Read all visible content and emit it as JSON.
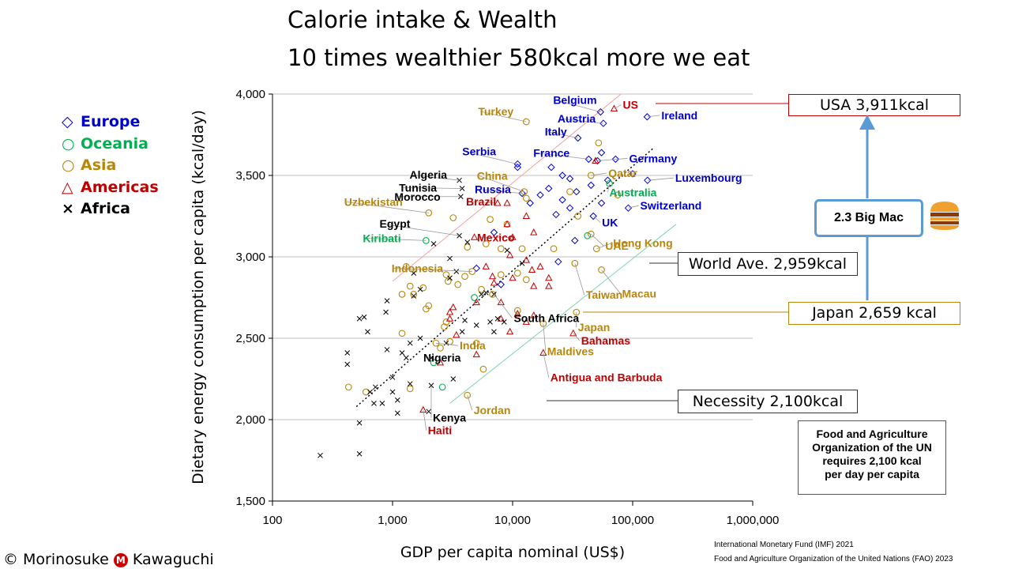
{
  "title_line1": "Calorie intake & Wealth",
  "title_line2": "10 times wealthier 580kcal more we eat",
  "legend": [
    {
      "symbol": "diamond",
      "label": "Europe",
      "color": "#0000cc"
    },
    {
      "symbol": "circle",
      "label": "Oceania",
      "color": "#00b050"
    },
    {
      "symbol": "circle",
      "label": "Asia",
      "color": "#b8860b"
    },
    {
      "symbol": "triangle",
      "label": "Americas",
      "color": "#c00000"
    },
    {
      "symbol": "cross",
      "label": "Africa",
      "color": "#000000"
    }
  ],
  "chart_data": {
    "type": "scatter",
    "xlabel": "GDP per capita nominal  (US$)",
    "ylabel": "Dietary energy consumption per capita (kcal/day)",
    "x_scale": "log",
    "xlim": [
      100,
      1000000
    ],
    "ylim": [
      1500,
      4000
    ],
    "x_ticks": [
      "100",
      "1,000",
      "10,000",
      "100,000",
      "1,000,000"
    ],
    "y_ticks": [
      "1,500",
      "2,000",
      "2,500",
      "3,000",
      "3,500",
      "4,000"
    ],
    "x_tick_values": [
      100,
      1000,
      10000,
      100000,
      1000000
    ],
    "y_tick_values": [
      1500,
      2000,
      2500,
      3000,
      3500,
      4000
    ],
    "grid": "horizontal",
    "trend_line": {
      "x": [
        500,
        150000
      ],
      "y": [
        2080,
        3670
      ]
    },
    "upper_line": {
      "x": [
        1000,
        80000
      ],
      "y": [
        2850,
        4000
      ]
    },
    "lower_line": {
      "x": [
        3000,
        230000
      ],
      "y": [
        2100,
        3200
      ]
    },
    "series": [
      {
        "name": "Europe",
        "marker": "diamond",
        "color": "#0000cc",
        "points": [
          {
            "x": 54000,
            "y": 3890,
            "label": "Belgium"
          },
          {
            "x": 57000,
            "y": 3820,
            "label": "Austria"
          },
          {
            "x": 132000,
            "y": 3860,
            "label": "Ireland"
          },
          {
            "x": 35000,
            "y": 3730,
            "label": "Italy"
          },
          {
            "x": 43000,
            "y": 3600,
            "label": "France"
          },
          {
            "x": 11000,
            "y": 3570,
            "label": "Serbia"
          },
          {
            "x": 51000,
            "y": 3590,
            "label": "Germany"
          },
          {
            "x": 133000,
            "y": 3470,
            "label": "Luxembourg"
          },
          {
            "x": 12000,
            "y": 3390,
            "label": "Russia"
          },
          {
            "x": 92000,
            "y": 3300,
            "label": "Switzerland"
          },
          {
            "x": 47000,
            "y": 3250,
            "label": "UK"
          },
          {
            "x": 11000,
            "y": 3550
          },
          {
            "x": 21000,
            "y": 3550
          },
          {
            "x": 26000,
            "y": 3500
          },
          {
            "x": 30000,
            "y": 3480
          },
          {
            "x": 55000,
            "y": 3640
          },
          {
            "x": 72000,
            "y": 3600
          },
          {
            "x": 100000,
            "y": 3510
          },
          {
            "x": 62000,
            "y": 3470
          },
          {
            "x": 45000,
            "y": 3440
          },
          {
            "x": 34000,
            "y": 3400
          },
          {
            "x": 20000,
            "y": 3420
          },
          {
            "x": 17000,
            "y": 3380
          },
          {
            "x": 26000,
            "y": 3350
          },
          {
            "x": 30000,
            "y": 3300
          },
          {
            "x": 14000,
            "y": 3330
          },
          {
            "x": 23000,
            "y": 3260
          },
          {
            "x": 55000,
            "y": 3330
          },
          {
            "x": 33000,
            "y": 3100
          },
          {
            "x": 24000,
            "y": 2970
          },
          {
            "x": 7000,
            "y": 3150
          },
          {
            "x": 5000,
            "y": 2930
          },
          {
            "x": 8000,
            "y": 2830
          }
        ]
      },
      {
        "name": "Oceania",
        "marker": "circle",
        "color": "#00b050",
        "points": [
          {
            "x": 1900,
            "y": 3100,
            "label": "Kiribati"
          },
          {
            "x": 64000,
            "y": 3450,
            "label": "Australia"
          },
          {
            "x": 42000,
            "y": 3130
          },
          {
            "x": 4800,
            "y": 2750
          },
          {
            "x": 2200,
            "y": 2350
          },
          {
            "x": 2600,
            "y": 2200
          }
        ]
      },
      {
        "name": "Asia",
        "marker": "circle",
        "color": "#b8860b",
        "points": [
          {
            "x": 13000,
            "y": 3830,
            "label": "Turkey"
          },
          {
            "x": 12500,
            "y": 3400,
            "label": "China"
          },
          {
            "x": 2000,
            "y": 3270,
            "label": "Uzbekistan"
          },
          {
            "x": 4600,
            "y": 2910,
            "label": "Indonesia"
          },
          {
            "x": 45000,
            "y": 3500,
            "label": "Qatar"
          },
          {
            "x": 45000,
            "y": 3140,
            "label": "UAE"
          },
          {
            "x": 50000,
            "y": 3050,
            "label": "Hong Kong"
          },
          {
            "x": 55000,
            "y": 2920,
            "label": "Macau"
          },
          {
            "x": 33000,
            "y": 2960,
            "label": "Taiwan"
          },
          {
            "x": 34000,
            "y": 2660,
            "label": "Japan"
          },
          {
            "x": 2300,
            "y": 2470,
            "label": "India"
          },
          {
            "x": 18000,
            "y": 2590,
            "label": "Maldives"
          },
          {
            "x": 4200,
            "y": 2150,
            "label": "Jordan"
          },
          {
            "x": 52000,
            "y": 3700
          },
          {
            "x": 30000,
            "y": 3400
          },
          {
            "x": 35000,
            "y": 3250
          },
          {
            "x": 75000,
            "y": 3380
          },
          {
            "x": 13000,
            "y": 3360
          },
          {
            "x": 9000,
            "y": 3200
          },
          {
            "x": 6500,
            "y": 3230
          },
          {
            "x": 4200,
            "y": 3060
          },
          {
            "x": 6000,
            "y": 3080
          },
          {
            "x": 8000,
            "y": 3050
          },
          {
            "x": 12000,
            "y": 3050
          },
          {
            "x": 22000,
            "y": 3050
          },
          {
            "x": 1300,
            "y": 2940
          },
          {
            "x": 1400,
            "y": 2820
          },
          {
            "x": 1500,
            "y": 2770
          },
          {
            "x": 1800,
            "y": 2810
          },
          {
            "x": 2000,
            "y": 2700
          },
          {
            "x": 1900,
            "y": 2680
          },
          {
            "x": 2800,
            "y": 2890
          },
          {
            "x": 2900,
            "y": 2850
          },
          {
            "x": 3500,
            "y": 2830
          },
          {
            "x": 4000,
            "y": 2880
          },
          {
            "x": 3200,
            "y": 3240
          },
          {
            "x": 5500,
            "y": 2800
          },
          {
            "x": 6800,
            "y": 2770
          },
          {
            "x": 8000,
            "y": 2890
          },
          {
            "x": 11000,
            "y": 2900
          },
          {
            "x": 13000,
            "y": 2860
          },
          {
            "x": 1200,
            "y": 2770
          },
          {
            "x": 2800,
            "y": 2600
          },
          {
            "x": 2700,
            "y": 2570
          },
          {
            "x": 1200,
            "y": 2530
          },
          {
            "x": 3000,
            "y": 2480
          },
          {
            "x": 2500,
            "y": 2440
          },
          {
            "x": 5000,
            "y": 2470
          },
          {
            "x": 5700,
            "y": 2310
          },
          {
            "x": 600,
            "y": 2170
          },
          {
            "x": 1400,
            "y": 2190
          },
          {
            "x": 430,
            "y": 2200
          },
          {
            "x": 11000,
            "y": 2670
          }
        ]
      },
      {
        "name": "Americas",
        "marker": "triangle",
        "color": "#c00000",
        "points": [
          {
            "x": 70000,
            "y": 3910,
            "label": "US"
          },
          {
            "x": 7500,
            "y": 3330,
            "label": "Brazil"
          },
          {
            "x": 10000,
            "y": 3120,
            "label": "Mexico"
          },
          {
            "x": 32000,
            "y": 2530,
            "label": "Bahamas"
          },
          {
            "x": 18000,
            "y": 2410,
            "label": "Antigua and Barbuda"
          },
          {
            "x": 1800,
            "y": 2060,
            "label": "Haiti"
          },
          {
            "x": 49000,
            "y": 3590
          },
          {
            "x": 9000,
            "y": 3200
          },
          {
            "x": 9000,
            "y": 3330
          },
          {
            "x": 13000,
            "y": 3250
          },
          {
            "x": 15000,
            "y": 3150
          },
          {
            "x": 4800,
            "y": 3120
          },
          {
            "x": 9500,
            "y": 3010
          },
          {
            "x": 13000,
            "y": 2980
          },
          {
            "x": 17000,
            "y": 2940
          },
          {
            "x": 6000,
            "y": 2940
          },
          {
            "x": 6800,
            "y": 2880
          },
          {
            "x": 7000,
            "y": 2840
          },
          {
            "x": 10000,
            "y": 2870
          },
          {
            "x": 14500,
            "y": 2920
          },
          {
            "x": 20000,
            "y": 2870
          },
          {
            "x": 20000,
            "y": 2820
          },
          {
            "x": 15000,
            "y": 2820
          },
          {
            "x": 8000,
            "y": 2720
          },
          {
            "x": 5000,
            "y": 2720
          },
          {
            "x": 3200,
            "y": 2690
          },
          {
            "x": 3000,
            "y": 2660
          },
          {
            "x": 3000,
            "y": 2620
          },
          {
            "x": 8000,
            "y": 2620
          },
          {
            "x": 11000,
            "y": 2650
          },
          {
            "x": 13000,
            "y": 2600
          },
          {
            "x": 15000,
            "y": 2640
          },
          {
            "x": 9500,
            "y": 2540
          },
          {
            "x": 5000,
            "y": 2400
          },
          {
            "x": 2500,
            "y": 2350
          },
          {
            "x": 3400,
            "y": 2520
          }
        ]
      },
      {
        "name": "Africa",
        "marker": "cross",
        "color": "#000000",
        "points": [
          {
            "x": 3600,
            "y": 3470,
            "label": "Algeria"
          },
          {
            "x": 3800,
            "y": 3420,
            "label": "Tunisia"
          },
          {
            "x": 3700,
            "y": 3370,
            "label": "Morocco"
          },
          {
            "x": 3600,
            "y": 3130,
            "label": "Egypt"
          },
          {
            "x": 7000,
            "y": 2770,
            "label": "South Africa"
          },
          {
            "x": 2100,
            "y": 2380,
            "label": "Nigeria"
          },
          {
            "x": 2100,
            "y": 2210,
            "label": "Kenya"
          },
          {
            "x": 250,
            "y": 1780
          },
          {
            "x": 530,
            "y": 1790
          },
          {
            "x": 530,
            "y": 1980
          },
          {
            "x": 420,
            "y": 2340
          },
          {
            "x": 420,
            "y": 2410
          },
          {
            "x": 530,
            "y": 2620
          },
          {
            "x": 580,
            "y": 2630
          },
          {
            "x": 620,
            "y": 2540
          },
          {
            "x": 650,
            "y": 2170
          },
          {
            "x": 700,
            "y": 2100
          },
          {
            "x": 720,
            "y": 2200
          },
          {
            "x": 820,
            "y": 2100
          },
          {
            "x": 900,
            "y": 2430
          },
          {
            "x": 900,
            "y": 2730
          },
          {
            "x": 880,
            "y": 2660
          },
          {
            "x": 1000,
            "y": 2260
          },
          {
            "x": 1000,
            "y": 2170
          },
          {
            "x": 1100,
            "y": 2040
          },
          {
            "x": 1100,
            "y": 2120
          },
          {
            "x": 1200,
            "y": 2410
          },
          {
            "x": 1400,
            "y": 2220
          },
          {
            "x": 1300,
            "y": 2380
          },
          {
            "x": 1500,
            "y": 2760
          },
          {
            "x": 1500,
            "y": 2900
          },
          {
            "x": 1700,
            "y": 2800
          },
          {
            "x": 1700,
            "y": 2500
          },
          {
            "x": 2000,
            "y": 2050
          },
          {
            "x": 2800,
            "y": 2470
          },
          {
            "x": 3200,
            "y": 2250
          },
          {
            "x": 3000,
            "y": 2990
          },
          {
            "x": 3400,
            "y": 2910
          },
          {
            "x": 3800,
            "y": 2540
          },
          {
            "x": 4000,
            "y": 2610
          },
          {
            "x": 4200,
            "y": 3090
          },
          {
            "x": 5000,
            "y": 2580
          },
          {
            "x": 5500,
            "y": 2770
          },
          {
            "x": 6500,
            "y": 2600
          },
          {
            "x": 6000,
            "y": 2780
          },
          {
            "x": 7000,
            "y": 2540
          },
          {
            "x": 7500,
            "y": 2620
          },
          {
            "x": 8500,
            "y": 2600
          },
          {
            "x": 9000,
            "y": 3040
          },
          {
            "x": 12000,
            "y": 2960
          },
          {
            "x": 3000,
            "y": 2870
          },
          {
            "x": 2200,
            "y": 3080
          },
          {
            "x": 1400,
            "y": 2470
          }
        ]
      }
    ]
  },
  "callouts": {
    "usa": "USA   3,911kcal",
    "world": "World Ave. 2,959kcal",
    "japan": "Japan   2,659 kcal",
    "necessity": "Necessity 2,100kcal",
    "bigmac": "2.3 Big Mac"
  },
  "fao_note": [
    "Food and Agriculture",
    "Organization of the UN",
    "requires 2,100 kcal",
    "per day per capita"
  ],
  "credit": {
    "left": "© Morinosuke",
    "logo": "M",
    "right": "Kawaguchi"
  },
  "sources": [
    "International Monetary Fund (IMF) 2021",
    "Food and Agriculture Organization of the United Nations (FAO) 2023"
  ]
}
